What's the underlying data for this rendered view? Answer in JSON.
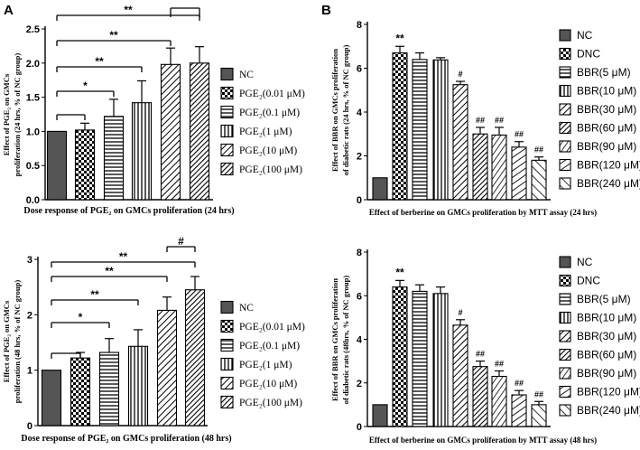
{
  "panel_labels": {
    "a": "A",
    "b": "B"
  },
  "colors": {
    "ink": "#000000",
    "dark_fill": "#555555",
    "background": "#ffffff"
  },
  "chart_data": [
    {
      "type": "bar",
      "id": "A1",
      "title": "",
      "xlabel": "Dose response of PGE₂ on GMCs proliferation (24 hrs)",
      "ylabel_line1": "Effect of PGE₂ on GMCs",
      "ylabel_line2": "proliferation (24 hrs, % of NC group)",
      "ylim": [
        0,
        2.5
      ],
      "yticks": [
        "0.0",
        "0.5",
        "1.0",
        "1.5",
        "2.0",
        "2.5"
      ],
      "categories": [
        "NC",
        "PGE₂(0.01 μM)",
        "PGE₂(0.1 μM)",
        "PGE₂(1 μM)",
        "PGE₂(10 μM)",
        "PGE₂(100 μM)"
      ],
      "values": [
        1.0,
        1.02,
        1.22,
        1.42,
        1.98,
        2.0
      ],
      "errors": [
        0.0,
        0.1,
        0.25,
        0.32,
        0.24,
        0.24
      ],
      "patterns": [
        "dark",
        "checker",
        "hlines",
        "vlines",
        "diag",
        "diagdense"
      ],
      "significance": [
        {
          "from": 0,
          "to": 1,
          "label": ""
        },
        {
          "from": 0,
          "to": 2,
          "label": "*"
        },
        {
          "from": 0,
          "to": 3,
          "label": "**"
        },
        {
          "from": 0,
          "to": 4,
          "label": "**"
        },
        {
          "from": 0,
          "to": 5,
          "label": "**"
        },
        {
          "from": 4,
          "to": 5,
          "label": ""
        }
      ]
    },
    {
      "type": "bar",
      "id": "A2",
      "title": "",
      "xlabel": "Dose response of PGE₂ on GMCs proliferation (48 hrs)",
      "ylabel_line1": "Effect of PGE₂ on GMCs",
      "ylabel_line2": "proliferation (48 hrs, % of NC group)",
      "ylim": [
        0,
        3
      ],
      "yticks": [
        "0",
        "1",
        "2",
        "3"
      ],
      "categories": [
        "NC",
        "PGE₂(0.01 μM)",
        "PGE₂(0.1 μM)",
        "PGE₂(1 μM)",
        "PGE₂(10 μM)",
        "PGE₂(100 μM)"
      ],
      "values": [
        1.0,
        1.22,
        1.32,
        1.43,
        2.08,
        2.45
      ],
      "errors": [
        0.0,
        0.1,
        0.25,
        0.3,
        0.24,
        0.24
      ],
      "patterns": [
        "dark",
        "checker",
        "hlines",
        "vlines",
        "diag",
        "diagdense"
      ],
      "significance": [
        {
          "from": 0,
          "to": 1,
          "label": ""
        },
        {
          "from": 0,
          "to": 2,
          "label": "*"
        },
        {
          "from": 0,
          "to": 3,
          "label": "**"
        },
        {
          "from": 0,
          "to": 4,
          "label": "**"
        },
        {
          "from": 0,
          "to": 5,
          "label": "**"
        },
        {
          "from": 4,
          "to": 5,
          "label": "#"
        }
      ]
    },
    {
      "type": "bar",
      "id": "B1",
      "title": "",
      "xlabel": "Effect of berberine on GMCs proliferation by MTT assay (24 hrs)",
      "ylabel_line1": "Effect of BBR on GMCs proliferation",
      "ylabel_line2": "of diabetic rats (24 hrs, % of NC group)",
      "ylim": [
        0,
        8
      ],
      "yticks": [
        "0",
        "2",
        "4",
        "6",
        "8"
      ],
      "categories": [
        "NC",
        "DNC",
        "BBR(5 μM)",
        "BBR(10 μM)",
        "BBR(30 μM)",
        "BBR(60 μM)",
        "BBR(90 μM)",
        "BBR(120 μM)",
        "BBR(240 μM)"
      ],
      "values": [
        1.0,
        6.7,
        6.4,
        6.38,
        5.25,
        3.0,
        2.95,
        2.4,
        1.8
      ],
      "errors": [
        0.0,
        0.3,
        0.3,
        0.1,
        0.15,
        0.3,
        0.35,
        0.25,
        0.15
      ],
      "patterns": [
        "dark",
        "checker",
        "hlines",
        "vlines",
        "diag",
        "diagdense",
        "diag2",
        "diag3",
        "diagsparse"
      ],
      "bar_labels": [
        "",
        "**",
        "",
        "",
        "#",
        "##",
        "##",
        "##",
        "##"
      ]
    },
    {
      "type": "bar",
      "id": "B2",
      "title": "",
      "xlabel": "Effect of berberine on GMCs proliferation by MTT assay (48 hrs)",
      "ylabel_line1": "Effect of BBR on GMCs proliferation",
      "ylabel_line2": "of diabetic rats (48hrs, % of NC group)",
      "ylim": [
        0,
        8
      ],
      "yticks": [
        "0",
        "2",
        "4",
        "6",
        "8"
      ],
      "categories": [
        "NC",
        "DNC",
        "BBR(5 μM)",
        "BBR(10 μM)",
        "BBR(30 μM)",
        "BBR(60 μM)",
        "BBR(90 μM)",
        "BBR(120 μM)",
        "BBR(240 μM)"
      ],
      "values": [
        1.0,
        6.4,
        6.2,
        6.1,
        4.65,
        2.75,
        2.3,
        1.45,
        1.0
      ],
      "errors": [
        0.0,
        0.3,
        0.3,
        0.3,
        0.25,
        0.25,
        0.25,
        0.2,
        0.15
      ],
      "patterns": [
        "dark",
        "checker",
        "hlines",
        "vlines",
        "diag",
        "diagdense",
        "diag2",
        "diag3",
        "diagsparse"
      ],
      "bar_labels": [
        "",
        "**",
        "",
        "",
        "#",
        "##",
        "##",
        "##",
        "##"
      ]
    }
  ]
}
